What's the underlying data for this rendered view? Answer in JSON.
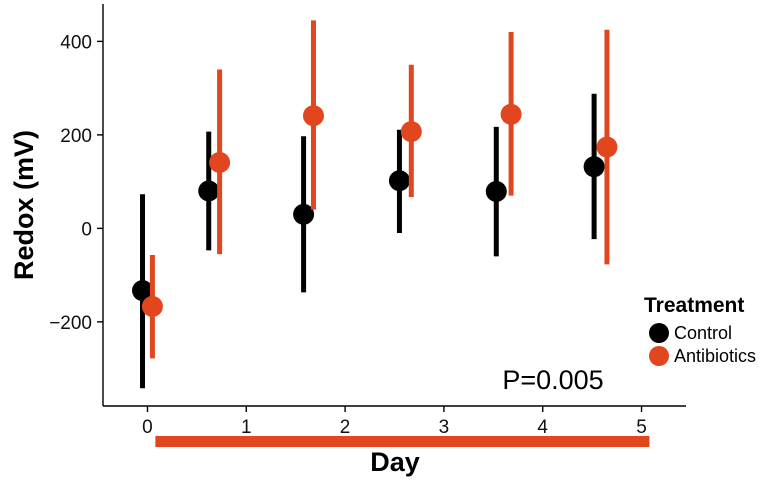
{
  "chart_data": {
    "type": "scatter",
    "xlabel": "Day",
    "ylabel": "Redox (mV)",
    "x_ticks": [
      "0",
      "1",
      "2",
      "3",
      "4",
      "5"
    ],
    "y_ticks": [
      "−200",
      "0",
      "200",
      "400"
    ],
    "xlim": [
      -0.45,
      5.45
    ],
    "ylim": [
      -380,
      480
    ],
    "grid": false,
    "legend_position": "right",
    "legend_title": "Treatment",
    "annotation": "P=0.005",
    "treatment_bar": {
      "from_day": 0.08,
      "to_day": 5.08,
      "color": "#e2461f"
    },
    "series": [
      {
        "name": "Control",
        "color": "#000000",
        "x": [
          -0.05,
          0.62,
          1.58,
          2.55,
          3.53,
          4.52
        ],
        "y": [
          -133,
          80,
          30,
          102,
          79,
          132
        ],
        "low": [
          -342,
          -47,
          -137,
          -10,
          -60,
          -23
        ],
        "high": [
          73,
          207,
          197,
          211,
          217,
          288
        ]
      },
      {
        "name": "Antibiotics",
        "color": "#e2461f",
        "x": [
          0.05,
          0.73,
          1.68,
          2.67,
          3.68,
          4.65
        ],
        "y": [
          -167,
          141,
          241,
          207,
          244,
          174
        ],
        "low": [
          -278,
          -55,
          40,
          67,
          70,
          -77
        ],
        "high": [
          -57,
          340,
          445,
          350,
          420,
          425
        ]
      }
    ]
  }
}
